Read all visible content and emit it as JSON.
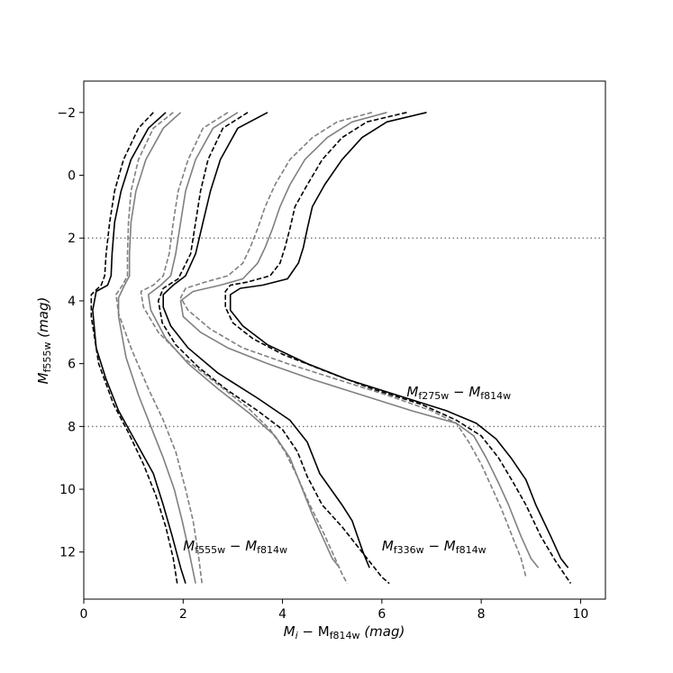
{
  "chart_data": {
    "type": "line",
    "xlabel": "M_i − M_f814w (mag)",
    "ylabel": "M_f555w (mag)",
    "xlabel_parts": {
      "main": "M",
      "sub1": "i",
      "mid": " − M",
      "sub2": "f814w",
      "unit": " (mag)"
    },
    "ylabel_parts": {
      "main": "M",
      "sub": "f555w",
      "unit": " (mag)"
    },
    "xlim": [
      0,
      10.5
    ],
    "ylim": [
      13.5,
      -3
    ],
    "y_inverted": true,
    "xticks": [
      0,
      2,
      4,
      6,
      8,
      10
    ],
    "xtick_labels": [
      "0",
      "2",
      "4",
      "6",
      "8",
      "10"
    ],
    "yticks": [
      -2,
      0,
      2,
      4,
      6,
      8,
      10,
      12
    ],
    "ytick_labels": [
      "−2",
      "0",
      "2",
      "4",
      "6",
      "8",
      "10",
      "12"
    ],
    "hlines": [
      2,
      8
    ],
    "hline_color": "#808080",
    "annotations": [
      {
        "x": 2.0,
        "y": 11.8,
        "main": "M",
        "sub1": "f555w",
        "mid": " − M",
        "sub2": "f814w"
      },
      {
        "x": 6.0,
        "y": 11.8,
        "main": "M",
        "sub1": "f336w",
        "mid": " − M",
        "sub2": "f814w"
      },
      {
        "x": 6.5,
        "y": 6.9,
        "main": "M",
        "sub1": "f275w",
        "mid": " − M",
        "sub2": "f814w"
      }
    ],
    "series": [
      {
        "color": "#000000",
        "dash": "solid",
        "points": [
          [
            1.65,
            -2
          ],
          [
            1.3,
            -1.5
          ],
          [
            0.95,
            -0.5
          ],
          [
            0.75,
            0.5
          ],
          [
            0.62,
            1.5
          ],
          [
            0.57,
            2.5
          ],
          [
            0.55,
            3.2
          ],
          [
            0.48,
            3.5
          ],
          [
            0.25,
            3.7
          ],
          [
            0.18,
            4.3
          ],
          [
            0.25,
            5.5
          ],
          [
            0.45,
            6.5
          ],
          [
            0.7,
            7.5
          ],
          [
            1.05,
            8.5
          ],
          [
            1.4,
            9.5
          ],
          [
            1.6,
            10.5
          ],
          [
            1.78,
            11.5
          ],
          [
            1.95,
            12.5
          ],
          [
            2.05,
            13
          ]
        ]
      },
      {
        "color": "#000000",
        "dash": "dashed",
        "points": [
          [
            1.4,
            -2
          ],
          [
            1.1,
            -1.5
          ],
          [
            0.8,
            -0.5
          ],
          [
            0.62,
            0.5
          ],
          [
            0.52,
            1.5
          ],
          [
            0.45,
            2.5
          ],
          [
            0.42,
            3.2
          ],
          [
            0.35,
            3.5
          ],
          [
            0.15,
            3.8
          ],
          [
            0.15,
            4.5
          ],
          [
            0.3,
            6
          ],
          [
            0.6,
            7.3
          ],
          [
            0.9,
            8.2
          ],
          [
            1.2,
            9.2
          ],
          [
            1.45,
            10.2
          ],
          [
            1.65,
            11.2
          ],
          [
            1.8,
            12.2
          ],
          [
            1.88,
            13
          ]
        ]
      },
      {
        "color": "#808080",
        "dash": "solid",
        "points": [
          [
            1.95,
            -2
          ],
          [
            1.6,
            -1.5
          ],
          [
            1.25,
            -0.5
          ],
          [
            1.05,
            0.5
          ],
          [
            0.95,
            1.5
          ],
          [
            0.92,
            2.5
          ],
          [
            0.92,
            3.2
          ],
          [
            0.82,
            3.5
          ],
          [
            0.7,
            3.9
          ],
          [
            0.7,
            4.5
          ],
          [
            0.85,
            5.8
          ],
          [
            1.1,
            7
          ],
          [
            1.35,
            8
          ],
          [
            1.6,
            9
          ],
          [
            1.82,
            10
          ],
          [
            1.98,
            11
          ],
          [
            2.12,
            12
          ],
          [
            2.25,
            13
          ]
        ]
      },
      {
        "color": "#808080",
        "dash": "dashed",
        "points": [
          [
            1.8,
            -2
          ],
          [
            1.4,
            -1.5
          ],
          [
            1.1,
            -0.5
          ],
          [
            0.95,
            0.5
          ],
          [
            0.9,
            1.5
          ],
          [
            0.88,
            2.5
          ],
          [
            0.88,
            3.2
          ],
          [
            0.78,
            3.5
          ],
          [
            0.65,
            3.8
          ],
          [
            0.7,
            4.4
          ],
          [
            0.95,
            5.5
          ],
          [
            1.3,
            6.8
          ],
          [
            1.6,
            7.8
          ],
          [
            1.85,
            8.8
          ],
          [
            2.05,
            10
          ],
          [
            2.2,
            11
          ],
          [
            2.3,
            12
          ],
          [
            2.38,
            13
          ]
        ]
      },
      {
        "color": "#000000",
        "dash": "solid",
        "points": [
          [
            3.7,
            -2
          ],
          [
            3.1,
            -1.5
          ],
          [
            2.75,
            -0.5
          ],
          [
            2.55,
            0.5
          ],
          [
            2.4,
            1.5
          ],
          [
            2.25,
            2.5
          ],
          [
            2.05,
            3.2
          ],
          [
            1.8,
            3.5
          ],
          [
            1.6,
            3.8
          ],
          [
            1.6,
            4.2
          ],
          [
            1.75,
            4.8
          ],
          [
            2.1,
            5.5
          ],
          [
            2.7,
            6.3
          ],
          [
            3.5,
            7.1
          ],
          [
            4.15,
            7.8
          ],
          [
            4.5,
            8.5
          ],
          [
            4.75,
            9.5
          ],
          [
            5.2,
            10.5
          ],
          [
            5.4,
            11
          ],
          [
            5.62,
            12
          ],
          [
            5.75,
            12.5
          ]
        ]
      },
      {
        "color": "#000000",
        "dash": "dashed",
        "points": [
          [
            3.3,
            -2
          ],
          [
            2.8,
            -1.5
          ],
          [
            2.5,
            -0.5
          ],
          [
            2.35,
            0.5
          ],
          [
            2.25,
            1.5
          ],
          [
            2.15,
            2.5
          ],
          [
            1.9,
            3.3
          ],
          [
            1.6,
            3.6
          ],
          [
            1.5,
            4
          ],
          [
            1.58,
            4.7
          ],
          [
            1.85,
            5.4
          ],
          [
            2.3,
            6.1
          ],
          [
            2.85,
            6.8
          ],
          [
            3.5,
            7.5
          ],
          [
            4,
            8.1
          ],
          [
            4.3,
            8.8
          ],
          [
            4.5,
            9.6
          ],
          [
            4.8,
            10.5
          ],
          [
            5.2,
            11.2
          ],
          [
            5.6,
            12
          ],
          [
            6.0,
            12.8
          ],
          [
            6.15,
            13
          ]
        ]
      },
      {
        "color": "#808080",
        "dash": "solid",
        "points": [
          [
            3.1,
            -2
          ],
          [
            2.6,
            -1.5
          ],
          [
            2.25,
            -0.5
          ],
          [
            2.05,
            0.5
          ],
          [
            1.95,
            1.5
          ],
          [
            1.85,
            2.5
          ],
          [
            1.75,
            3.2
          ],
          [
            1.55,
            3.5
          ],
          [
            1.3,
            3.8
          ],
          [
            1.35,
            4.3
          ],
          [
            1.65,
            5.2
          ],
          [
            2.1,
            6
          ],
          [
            2.7,
            6.8
          ],
          [
            3.35,
            7.6
          ],
          [
            3.85,
            8.3
          ],
          [
            4.15,
            9
          ],
          [
            4.35,
            9.8
          ],
          [
            4.6,
            10.8
          ],
          [
            4.8,
            11.5
          ],
          [
            5.0,
            12.2
          ],
          [
            5.15,
            12.5
          ]
        ]
      },
      {
        "color": "#808080",
        "dash": "dashed",
        "points": [
          [
            2.9,
            -2
          ],
          [
            2.4,
            -1.5
          ],
          [
            2.1,
            -0.5
          ],
          [
            1.9,
            0.5
          ],
          [
            1.8,
            1.5
          ],
          [
            1.72,
            2.5
          ],
          [
            1.6,
            3.2
          ],
          [
            1.4,
            3.5
          ],
          [
            1.15,
            3.7
          ],
          [
            1.2,
            4.2
          ],
          [
            1.5,
            5
          ],
          [
            2.0,
            5.8
          ],
          [
            2.65,
            6.6
          ],
          [
            3.3,
            7.4
          ],
          [
            3.75,
            8.1
          ],
          [
            4.05,
            8.8
          ],
          [
            4.3,
            9.6
          ],
          [
            4.55,
            10.5
          ],
          [
            4.8,
            11.3
          ],
          [
            5.0,
            12
          ],
          [
            5.2,
            12.7
          ],
          [
            5.3,
            13
          ]
        ]
      },
      {
        "color": "#000000",
        "dash": "solid",
        "points": [
          [
            6.9,
            -2
          ],
          [
            6.1,
            -1.7
          ],
          [
            5.6,
            -1.2
          ],
          [
            5.2,
            -0.5
          ],
          [
            4.85,
            0.3
          ],
          [
            4.6,
            1
          ],
          [
            4.5,
            1.7
          ],
          [
            4.42,
            2.3
          ],
          [
            4.32,
            2.8
          ],
          [
            4.1,
            3.3
          ],
          [
            3.6,
            3.5
          ],
          [
            3.15,
            3.6
          ],
          [
            2.95,
            3.8
          ],
          [
            2.95,
            4.3
          ],
          [
            3.2,
            4.8
          ],
          [
            3.7,
            5.4
          ],
          [
            4.5,
            6
          ],
          [
            5.3,
            6.5
          ],
          [
            6.3,
            7
          ],
          [
            7.3,
            7.5
          ],
          [
            7.9,
            7.9
          ],
          [
            8.3,
            8.4
          ],
          [
            8.6,
            9
          ],
          [
            8.9,
            9.7
          ],
          [
            9.1,
            10.5
          ],
          [
            9.4,
            11.5
          ],
          [
            9.6,
            12.2
          ],
          [
            9.75,
            12.5
          ]
        ]
      },
      {
        "color": "#000000",
        "dash": "dashed",
        "points": [
          [
            6.5,
            -2
          ],
          [
            5.7,
            -1.7
          ],
          [
            5.2,
            -1.2
          ],
          [
            4.8,
            -0.5
          ],
          [
            4.5,
            0.3
          ],
          [
            4.25,
            1
          ],
          [
            4.15,
            1.7
          ],
          [
            4.05,
            2.3
          ],
          [
            3.95,
            2.8
          ],
          [
            3.75,
            3.2
          ],
          [
            3.3,
            3.4
          ],
          [
            2.95,
            3.5
          ],
          [
            2.85,
            3.7
          ],
          [
            2.85,
            4.2
          ],
          [
            3.0,
            4.7
          ],
          [
            3.4,
            5.2
          ],
          [
            4.0,
            5.7
          ],
          [
            4.8,
            6.2
          ],
          [
            5.8,
            6.8
          ],
          [
            6.8,
            7.3
          ],
          [
            7.5,
            7.8
          ],
          [
            8.0,
            8.3
          ],
          [
            8.35,
            9
          ],
          [
            8.65,
            9.8
          ],
          [
            8.9,
            10.5
          ],
          [
            9.2,
            11.5
          ],
          [
            9.5,
            12.3
          ],
          [
            9.8,
            13
          ]
        ]
      },
      {
        "color": "#808080",
        "dash": "solid",
        "points": [
          [
            6.1,
            -2
          ],
          [
            5.4,
            -1.7
          ],
          [
            4.9,
            -1.2
          ],
          [
            4.45,
            -0.5
          ],
          [
            4.15,
            0.3
          ],
          [
            3.95,
            1
          ],
          [
            3.8,
            1.7
          ],
          [
            3.65,
            2.3
          ],
          [
            3.5,
            2.8
          ],
          [
            3.2,
            3.3
          ],
          [
            2.75,
            3.5
          ],
          [
            2.2,
            3.7
          ],
          [
            1.95,
            4
          ],
          [
            2.0,
            4.5
          ],
          [
            2.35,
            5
          ],
          [
            2.9,
            5.5
          ],
          [
            3.7,
            6
          ],
          [
            4.6,
            6.5
          ],
          [
            5.6,
            7
          ],
          [
            6.6,
            7.5
          ],
          [
            7.5,
            7.9
          ],
          [
            7.85,
            8.3
          ],
          [
            8.1,
            9
          ],
          [
            8.35,
            9.8
          ],
          [
            8.55,
            10.5
          ],
          [
            8.8,
            11.5
          ],
          [
            9.0,
            12.2
          ],
          [
            9.15,
            12.5
          ]
        ]
      },
      {
        "color": "#808080",
        "dash": "dashed",
        "points": [
          [
            5.8,
            -2
          ],
          [
            5.1,
            -1.7
          ],
          [
            4.6,
            -1.2
          ],
          [
            4.15,
            -0.5
          ],
          [
            3.85,
            0.3
          ],
          [
            3.65,
            1
          ],
          [
            3.5,
            1.7
          ],
          [
            3.35,
            2.3
          ],
          [
            3.2,
            2.8
          ],
          [
            2.9,
            3.2
          ],
          [
            2.45,
            3.4
          ],
          [
            2.05,
            3.6
          ],
          [
            1.95,
            3.9
          ],
          [
            2.1,
            4.3
          ],
          [
            2.55,
            4.9
          ],
          [
            3.2,
            5.5
          ],
          [
            4.1,
            6
          ],
          [
            5.1,
            6.5
          ],
          [
            6.1,
            7
          ],
          [
            7.0,
            7.5
          ],
          [
            7.5,
            7.9
          ],
          [
            7.75,
            8.5
          ],
          [
            8.0,
            9.2
          ],
          [
            8.2,
            9.9
          ],
          [
            8.4,
            10.6
          ],
          [
            8.6,
            11.4
          ],
          [
            8.8,
            12.2
          ],
          [
            8.9,
            12.8
          ]
        ]
      }
    ]
  }
}
